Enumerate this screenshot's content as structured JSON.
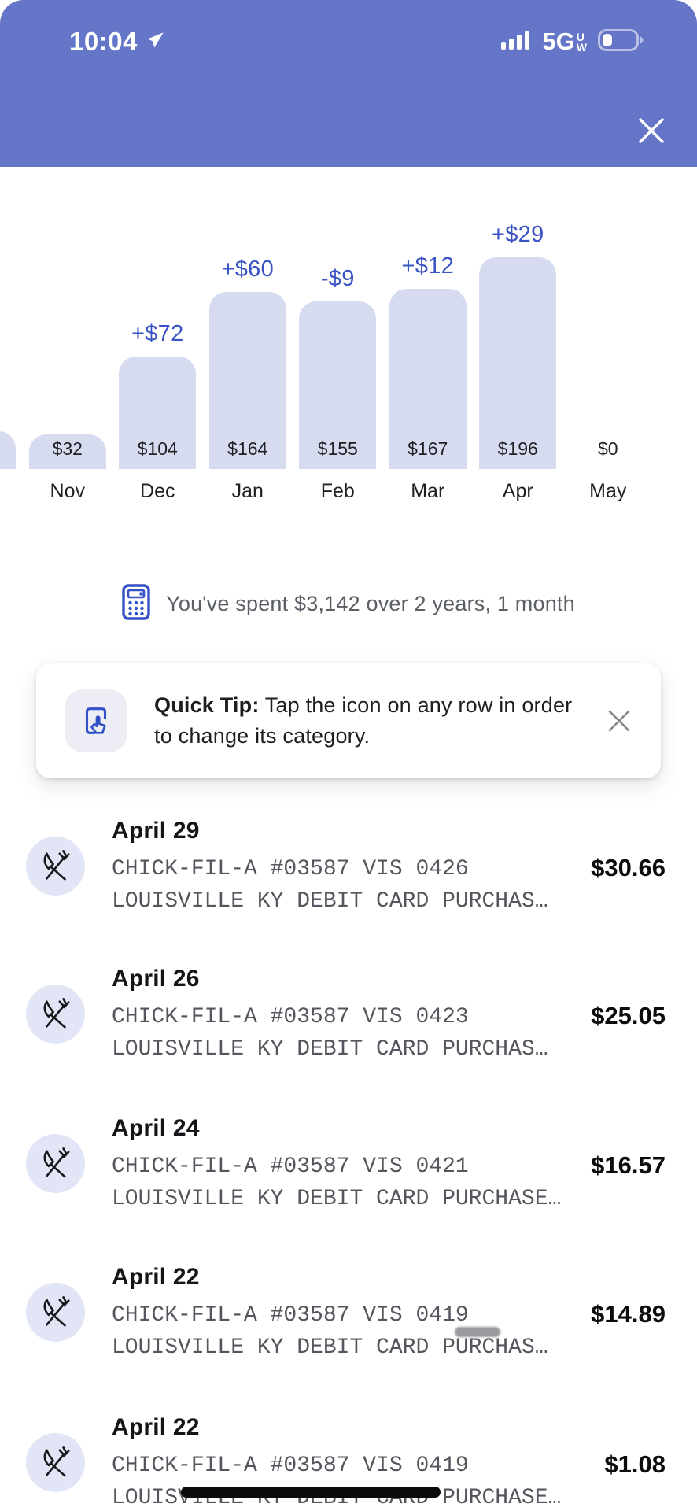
{
  "colors": {
    "header_bg": "#6575C8",
    "bar_fill": "#D7DBF0",
    "delta_blue": "#3A53C4",
    "icon_blue": "#3351C6",
    "row_icon_bg": "#E2E5F6",
    "tip_icon_bg": "#ECEDF5",
    "mono_gray": "#53565C"
  },
  "status_bar": {
    "time": "10:04",
    "location_icon": "location-arrow-icon",
    "signal_icon": "cellular-signal-icon",
    "network": "5G",
    "network_sub_top": "U",
    "network_sub_bottom": "W",
    "battery_icon": "battery-low-icon"
  },
  "header": {
    "close_icon": "close-icon"
  },
  "chart_data": {
    "type": "bar",
    "categories": [
      "Nov",
      "Dec",
      "Jan",
      "Feb",
      "Mar",
      "Apr",
      "May"
    ],
    "values": [
      32,
      104,
      164,
      155,
      167,
      196,
      0
    ],
    "value_labels": [
      "$32",
      "$104",
      "$164",
      "$155",
      "$167",
      "$196",
      "$0"
    ],
    "delta_labels": [
      "",
      "+$72",
      "+$60",
      "-$9",
      "+$12",
      "+$29",
      ""
    ],
    "partial_left_bar": true,
    "title": "",
    "xlabel": "",
    "ylabel": "",
    "ylim": [
      0,
      196
    ],
    "grid": false,
    "legend": false,
    "bar_color": "#D7DBF0",
    "delta_label_color": "#3A53C4"
  },
  "summary": {
    "icon": "calculator-icon",
    "text": "You've spent $3,142 over 2 years, 1 month"
  },
  "quick_tip": {
    "icon": "tap-card-icon",
    "prefix": "Quick Tip:",
    "body": " Tap the icon on any row in order to change its category.",
    "close_icon": "close-icon"
  },
  "transactions": [
    {
      "date": "April 29",
      "line1": "CHICK-FIL-A #03587 VIS 0426",
      "line2": "LOUISVILLE KY DEBIT CARD PURCHAS…",
      "amount": "$30.66",
      "category_icon": "restaurant-icon",
      "redaction": "none"
    },
    {
      "date": "April 26",
      "line1": "CHICK-FIL-A #03587 VIS 0423",
      "line2": "LOUISVILLE KY DEBIT CARD PURCHAS…",
      "amount": "$25.05",
      "category_icon": "restaurant-icon",
      "redaction": "none"
    },
    {
      "date": "April 24",
      "line1": "CHICK-FIL-A #03587 VIS 0421",
      "line2": "LOUISVILLE KY DEBIT CARD PURCHASE…",
      "amount": "$16.57",
      "category_icon": "restaurant-icon",
      "redaction": "none"
    },
    {
      "date": "April 22",
      "line1": "CHICK-FIL-A #03587 VIS 0419",
      "line2": "LOUISVILLE KY DEBIT CARD PURCHAS…",
      "amount": "$14.89",
      "category_icon": "restaurant-icon",
      "redaction": "smudge"
    },
    {
      "date": "April 22",
      "line1": "CHICK-FIL-A #03587 VIS 0419",
      "line2": "LOUISVILLE KY DEBIT CARD PURCHASE…",
      "amount": "$1.08",
      "category_icon": "restaurant-icon",
      "redaction": "bar"
    }
  ]
}
